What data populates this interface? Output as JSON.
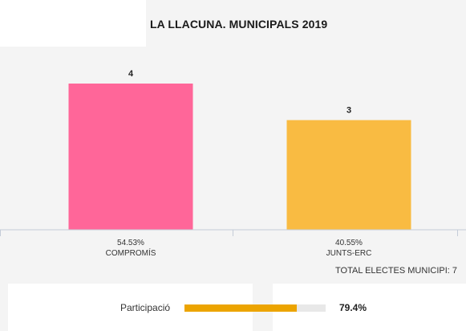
{
  "title": "LA LLACUNA. MUNICIPALS 2019",
  "total_label": "TOTAL ELECTES MUNICIPI: 7",
  "participation": {
    "label": "Participació",
    "value_text": "79.4%",
    "value": 79.4,
    "color": "#eca400"
  },
  "chart_data": {
    "type": "bar",
    "title": "LA LLACUNA. MUNICIPALS 2019",
    "categories": [
      "COMPROMÍS",
      "JUNTS-ERC"
    ],
    "values": [
      4,
      3
    ],
    "percent_labels": [
      "54.53%",
      "40.55%"
    ],
    "colors": [
      "#ff6699",
      "#f9bb42"
    ],
    "ylim": [
      0,
      4
    ],
    "grid": false,
    "xlabel": "",
    "ylabel": ""
  }
}
